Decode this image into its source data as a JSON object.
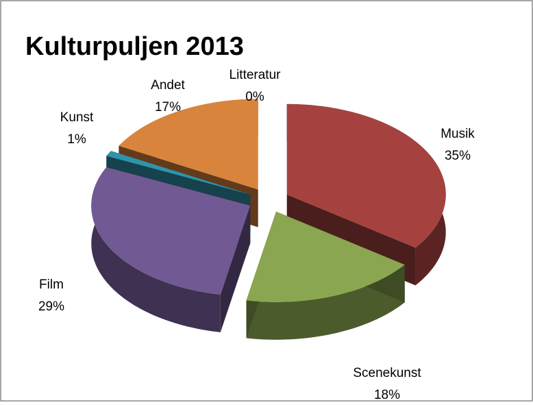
{
  "chart_data": {
    "type": "pie3d",
    "title": "Kulturpuljen 2013",
    "categories": [
      "Musik",
      "Scenekunst",
      "Film",
      "Kunst",
      "Andet",
      "Litteratur"
    ],
    "values": [
      35,
      18,
      29,
      1,
      17,
      0
    ],
    "value_labels": [
      "35%",
      "18%",
      "29%",
      "1%",
      "17%",
      "0%"
    ],
    "colors": [
      "#a5423f",
      "#8aa650",
      "#715993",
      "#2f93ab",
      "#d9843c",
      "#4a7ebb"
    ]
  }
}
